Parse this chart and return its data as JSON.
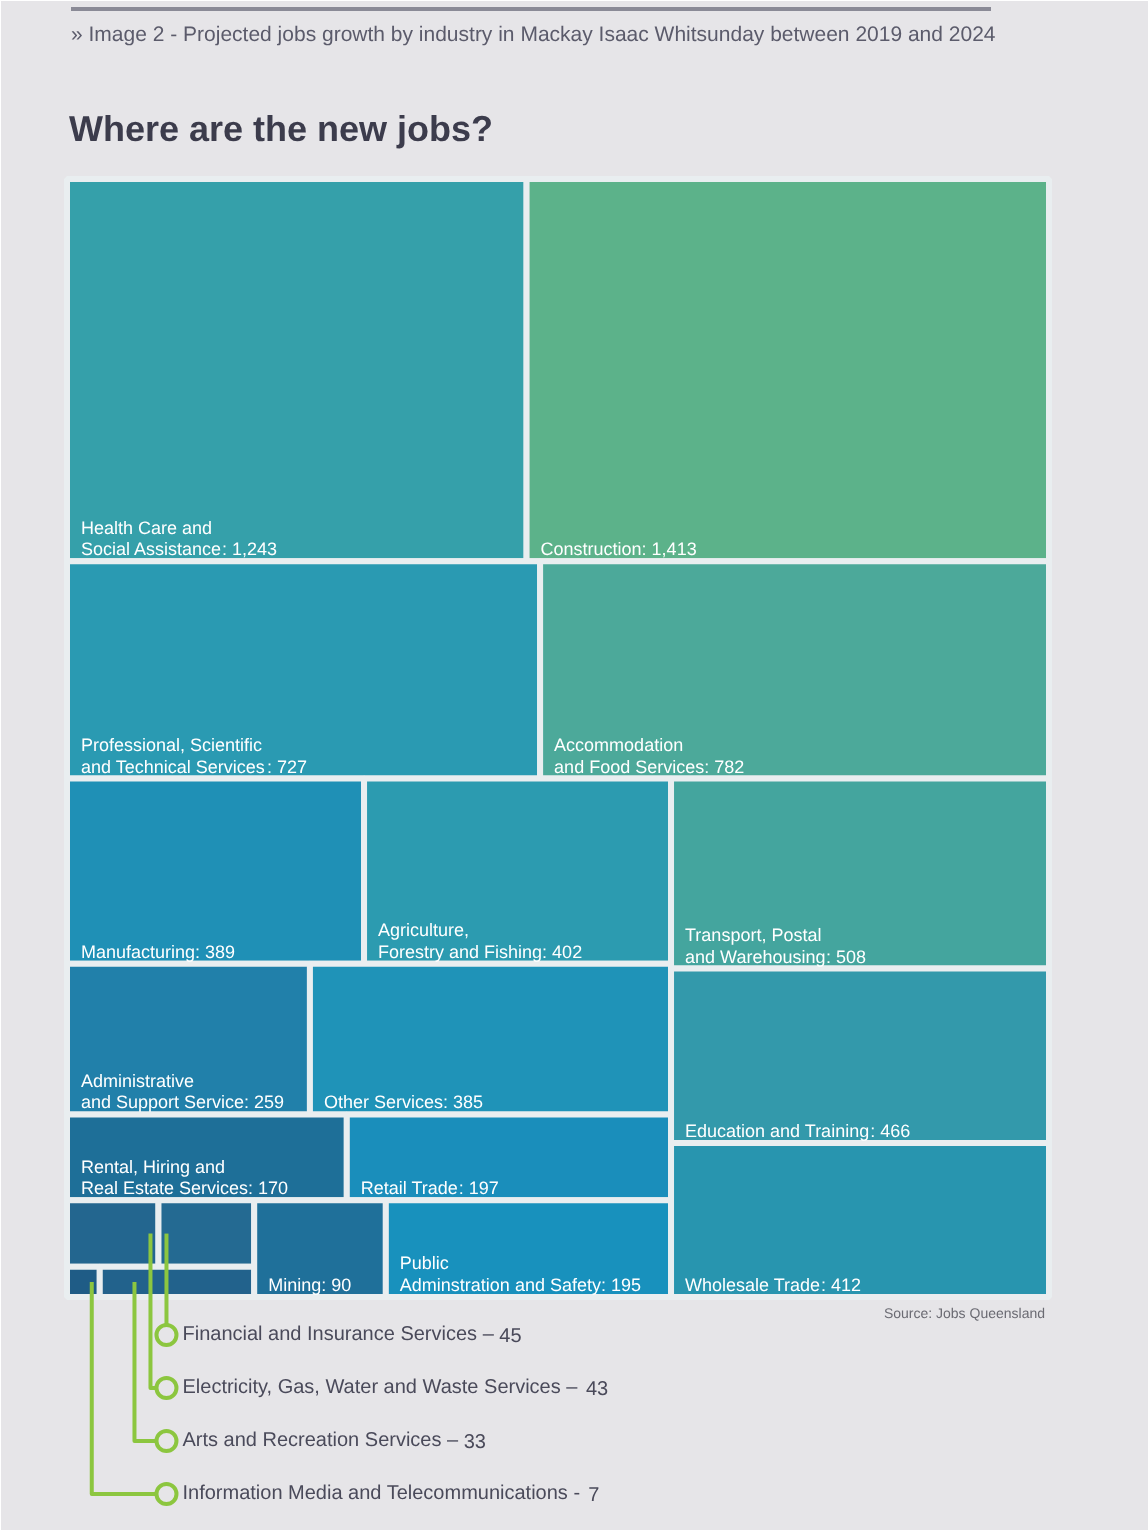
{
  "chart_data": {
    "type": "other",
    "title": "Where are the new jobs?",
    "subtitle": "» Image 2 - Projected jobs growth by industry in Mackay Isaac Whitsunday between 2019 and 2024",
    "categories": [
      "Health Care and\nSocial Assistance",
      "Construction",
      "Professional, Scientific\nand Technical Services",
      "Accommodation\nand Food Services",
      "Manufacturing",
      "Agriculture,\nForestry and Fishing",
      "Administrative\nand Support Service",
      "Other Services",
      "Rental, Hiring and\nReal Estate Services",
      "Retail Trade",
      "Electricity, Gas, Water and Waste Services –",
      "Financial and Insurance Services –",
      "Information Media and Telecommunications -",
      "Arts and Recreation Services –",
      "Mining",
      "Public\nAdminstration and Safety",
      "Transport, Postal\nand Warehousing",
      "Education and Training",
      "Wholesale Trade"
    ],
    "values": [
      1243,
      1413,
      727,
      782,
      389,
      402,
      259,
      385,
      170,
      197,
      43,
      45,
      7,
      33,
      90,
      195,
      508,
      466,
      412
    ],
    "value_labels": [
      ": 1,243",
      ": 1,413",
      ": 727",
      ": 782",
      ": 389",
      ": 402",
      ": 259",
      ": 385",
      ": 170",
      ": 197",
      "43",
      "45",
      "7",
      "33",
      ": 90",
      ": 195",
      ": 508",
      ": 466",
      ": 412"
    ],
    "colors": [
      "#35a0aa",
      "#5cb28a",
      "#2a9ab2",
      "#4ca99a",
      "#1f90b6",
      "#2c9bb0",
      "#2180aa",
      "#1f93b8",
      "#1e6f98",
      "#1a8ebb",
      "#23668f",
      "#246a92",
      "#1f5c86",
      "#22628c",
      "#1f709a",
      "#1891bd",
      "#44a59e",
      "#3399ab",
      "#2895af"
    ],
    "annotations": [
      "Source: Jobs Queensland"
    ]
  }
}
